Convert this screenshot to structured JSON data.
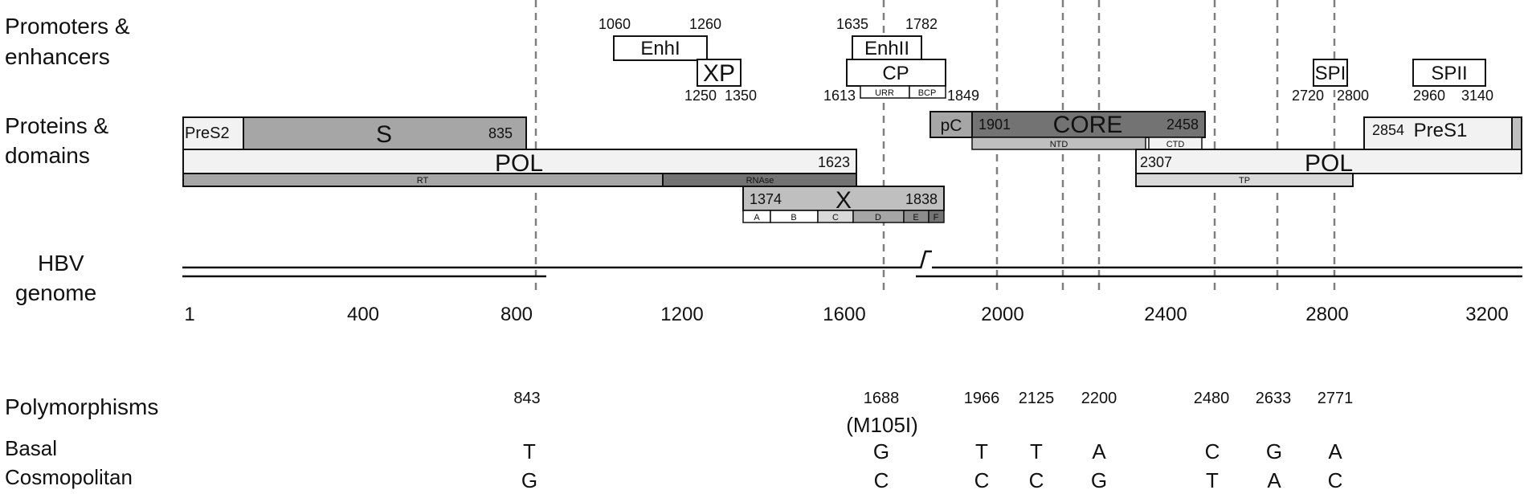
{
  "row_labels": {
    "promoters_l1": "Promoters &",
    "promoters_l2": "enhancers",
    "proteins_l1": "Proteins &",
    "proteins_l2": "domains",
    "genome_l1": "HBV",
    "genome_l2": "genome",
    "polymorphisms": "Polymorphisms",
    "basal": "Basal",
    "cosmopolitan": "Cosmopolitan"
  },
  "promoters": [
    {
      "name": "EnhI",
      "start_label": "1060",
      "end_label": "1260"
    },
    {
      "name": "XP",
      "start_label": "1250",
      "end_label": "1350"
    },
    {
      "name": "EnhII",
      "start_label": "1635",
      "end_label": "1782"
    },
    {
      "name": "CP",
      "start_label": "1613",
      "end_label": "1849"
    },
    {
      "name": "URR"
    },
    {
      "name": "BCP"
    },
    {
      "name": "SPI",
      "start_label": "2720",
      "end_label": "2800"
    },
    {
      "name": "SPII",
      "start_label": "2960",
      "end_label": "3140"
    }
  ],
  "proteins": {
    "pres2": "PreS2",
    "s": "S",
    "s_end": "835",
    "pol_left": "POL",
    "pol_left_end": "1623",
    "rt": "RT",
    "rnase": "RNAse",
    "x": "X",
    "x_start": "1374",
    "x_end": "1838",
    "x_domains": [
      "A",
      "B",
      "C",
      "D",
      "E",
      "F"
    ],
    "pc": "pC",
    "core": "CORE",
    "core_start": "1901",
    "core_end": "2458",
    "ntd": "NTD",
    "ctd": "CTD",
    "pres1": "PreS1",
    "pres1_start": "2854",
    "pol_right": "POL",
    "pol_right_start": "2307",
    "tp": "TP"
  },
  "genome_axis": {
    "ticks": [
      "1",
      "400",
      "800",
      "1200",
      "1600",
      "2000",
      "2400",
      "2800",
      "3200"
    ]
  },
  "polymorphisms": [
    {
      "position": "843",
      "basal": "T",
      "cosmopolitan": "G"
    },
    {
      "position": "1688",
      "note": "(M105I)",
      "basal": "G",
      "cosmopolitan": "C"
    },
    {
      "position": "1966",
      "basal": "T",
      "cosmopolitan": "C"
    },
    {
      "position": "2125",
      "basal": "T",
      "cosmopolitan": "C"
    },
    {
      "position": "2200",
      "basal": "A",
      "cosmopolitan": "G"
    },
    {
      "position": "2480",
      "basal": "C",
      "cosmopolitan": "T"
    },
    {
      "position": "2633",
      "basal": "G",
      "cosmopolitan": "A"
    },
    {
      "position": "2771",
      "basal": "A",
      "cosmopolitan": "C"
    }
  ],
  "colors": {
    "s_fill": "#a6a6a6",
    "light_fill": "#f2f2f2",
    "mid_fill": "#bfbfbf",
    "dark_fill": "#737373",
    "stroke": "#111111",
    "dash": "#7f7f7f"
  }
}
